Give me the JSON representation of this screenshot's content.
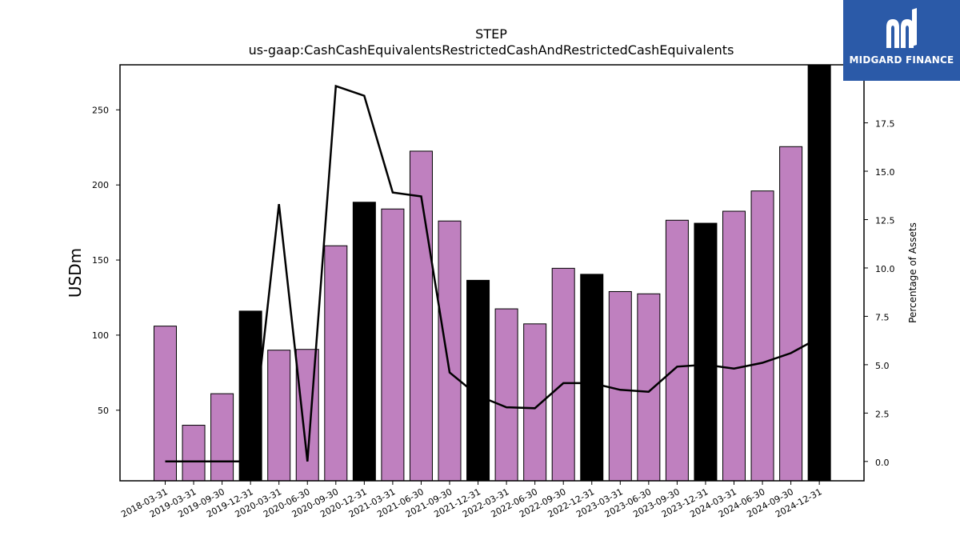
{
  "chart_data": {
    "type": "bar",
    "title": "STEP",
    "subtitle": "us-gaap:CashCashEquivalentsRestrictedCashAndRestrictedCashEquivalents",
    "ylabel": "USDm",
    "y2label": "Percentage of Assets",
    "categories": [
      "2018-03-31",
      "2019-03-31",
      "2019-09-30",
      "2019-12-31",
      "2020-03-31",
      "2020-06-30",
      "2020-09-30",
      "2020-12-31",
      "2021-03-31",
      "2021-06-30",
      "2021-09-30",
      "2021-12-31",
      "2022-03-31",
      "2022-06-30",
      "2022-09-30",
      "2022-12-31",
      "2023-03-31",
      "2023-06-30",
      "2023-09-30",
      "2023-12-31",
      "2024-03-31",
      "2024-06-30",
      "2024-09-30",
      "2024-12-31"
    ],
    "series": [
      {
        "type": "bar",
        "values": [
          106,
          40,
          61,
          116,
          90,
          90.5,
          159.5,
          188.5,
          184,
          222.5,
          176,
          136.5,
          117.5,
          107.5,
          144.5,
          140.5,
          129,
          127.5,
          176.5,
          174.5,
          182.5,
          196,
          225.5,
          280
        ],
        "colors": [
          "#bf80bf",
          "#bf80bf",
          "#bf80bf",
          "#000000",
          "#bf80bf",
          "#bf80bf",
          "#bf80bf",
          "#000000",
          "#bf80bf",
          "#bf80bf",
          "#bf80bf",
          "#000000",
          "#bf80bf",
          "#bf80bf",
          "#bf80bf",
          "#000000",
          "#bf80bf",
          "#bf80bf",
          "#bf80bf",
          "#000000",
          "#bf80bf",
          "#bf80bf",
          "#bf80bf",
          "#000000"
        ]
      },
      {
        "type": "line",
        "axis": "right",
        "values": [
          0.0,
          0.0,
          0.0,
          0.0,
          13.3,
          0.0,
          19.4,
          18.9,
          13.9,
          13.7,
          4.6,
          3.4,
          2.8,
          2.75,
          4.05,
          4.05,
          3.7,
          3.6,
          4.9,
          5.0,
          4.8,
          5.1,
          5.6,
          6.4
        ],
        "color": "#000000"
      }
    ],
    "ylim": [
      3,
      280
    ],
    "y2lim": [
      -1,
      20.5
    ],
    "yticks": [
      50,
      100,
      150,
      200,
      250
    ],
    "y2ticks": [
      0.0,
      2.5,
      5.0,
      7.5,
      10.0,
      12.5,
      15.0,
      17.5
    ],
    "grid": false,
    "legend": "none"
  },
  "logo": {
    "text": "MIDGARD FINANCE",
    "background": "#2b5aa8"
  }
}
